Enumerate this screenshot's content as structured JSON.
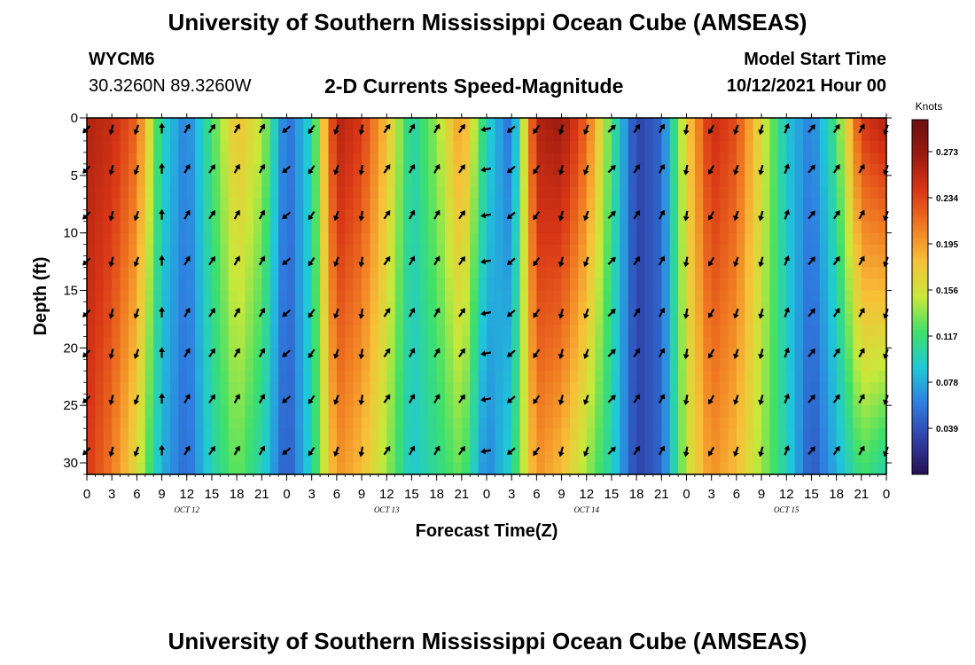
{
  "header": {
    "title": "University of Southern Mississippi Ocean Cube (AMSEAS)",
    "station": "WYCM6",
    "coords": "30.3260N  89.3260W",
    "subtitle": "2-D Currents Speed-Magnitude",
    "model_start_label": "Model Start Time",
    "model_start_value": "10/12/2021 Hour 00"
  },
  "footer": {
    "title": "University of Southern Mississippi Ocean Cube (AMSEAS)"
  },
  "chart_data": {
    "type": "heatmap",
    "title": "2-D Currents Speed-Magnitude",
    "xlabel": "Forecast Time(Z)",
    "ylabel": "Depth (ft)",
    "x_range_hours": [
      0,
      96
    ],
    "y_range_ft": [
      0,
      31
    ],
    "x_ticks": [
      "0",
      "3",
      "6",
      "9",
      "12",
      "15",
      "18",
      "21",
      "0",
      "3",
      "6",
      "9",
      "12",
      "15",
      "18",
      "21",
      "0",
      "3",
      "6",
      "9",
      "12",
      "15",
      "18",
      "21",
      "0",
      "3",
      "6",
      "9",
      "12",
      "15",
      "18",
      "21",
      "0"
    ],
    "y_ticks": [
      0,
      5,
      10,
      15,
      20,
      25,
      30
    ],
    "y_tick_labels": [
      "0",
      "5",
      "10",
      "15",
      "20",
      "25",
      "30"
    ],
    "day_labels": [
      "OCT 12",
      "OCT 13",
      "OCT 14",
      "OCT 15"
    ],
    "colorbar": {
      "title": "Knots",
      "ticks": [
        "0.273",
        "0.234",
        "0.195",
        "0.156",
        "0.117",
        "0.078",
        "0.039"
      ],
      "min": 0.0,
      "max": 0.3,
      "colors": [
        "#271054",
        "#3040a8",
        "#2f7de0",
        "#1fc8d8",
        "#3ee06a",
        "#c8e83a",
        "#f8c038",
        "#f07a22",
        "#d93616",
        "#9c1a10",
        "#6a0f0f"
      ]
    },
    "speed_profile_surface_knots": [
      0.26,
      0.25,
      0.22,
      0.1,
      0.06,
      0.12,
      0.18,
      0.15,
      0.05,
      0.1,
      0.26,
      0.24,
      0.18,
      0.1,
      0.14,
      0.2,
      0.1,
      0.05,
      0.26,
      0.27,
      0.22,
      0.12,
      0.03,
      0.05,
      0.17,
      0.25,
      0.23,
      0.16,
      0.09,
      0.06,
      0.12,
      0.24,
      0.26
    ],
    "speed_profile_bottom_knots": [
      0.24,
      0.21,
      0.16,
      0.08,
      0.05,
      0.1,
      0.13,
      0.1,
      0.04,
      0.1,
      0.2,
      0.18,
      0.14,
      0.09,
      0.11,
      0.13,
      0.06,
      0.1,
      0.2,
      0.18,
      0.14,
      0.1,
      0.03,
      0.05,
      0.15,
      0.2,
      0.18,
      0.14,
      0.1,
      0.04,
      0.08,
      0.12,
      0.1
    ],
    "arrow_direction_deg": [
      225,
      195,
      200,
      0,
      30,
      35,
      30,
      30,
      230,
      215,
      200,
      190,
      35,
      30,
      30,
      35,
      260,
      230,
      215,
      195,
      200,
      45,
      35,
      30,
      190,
      210,
      200,
      195,
      20,
      40,
      35,
      30,
      200
    ],
    "arrow_depths_ft": [
      0.5,
      4,
      8,
      12,
      16.5,
      20,
      24,
      28.5
    ]
  }
}
